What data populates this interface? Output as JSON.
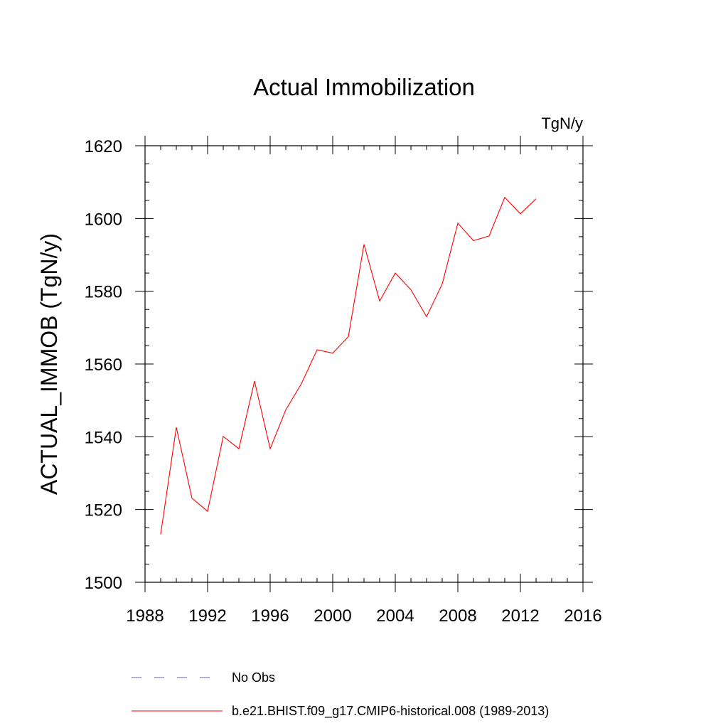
{
  "chart_data": {
    "type": "line",
    "title": "Actual Immobilization",
    "units_label": "TgN/y",
    "xlabel": "",
    "ylabel": "ACTUAL_IMMOB  (TgN/y)",
    "xlim": [
      1988,
      2016
    ],
    "ylim": [
      1500,
      1620
    ],
    "x_ticks": [
      1988,
      1992,
      1996,
      2000,
      2004,
      2008,
      2012,
      2016
    ],
    "y_ticks": [
      1500,
      1520,
      1540,
      1560,
      1580,
      1600,
      1620
    ],
    "x_tick_labels": [
      "1988",
      "1992",
      "1996",
      "2000",
      "2004",
      "2008",
      "2012",
      "2016"
    ],
    "y_tick_labels": [
      "1500",
      "1520",
      "1540",
      "1560",
      "1580",
      "1600",
      "1620"
    ],
    "series": [
      {
        "name": "b.e21.BHIST.f09_g17.CMIP6-historical.008 (1989-2013)",
        "color": "#ff0000",
        "x": [
          1989,
          1990,
          1991,
          1992,
          1993,
          1994,
          1995,
          1996,
          1997,
          1998,
          1999,
          2000,
          2001,
          2002,
          2003,
          2004,
          2005,
          2006,
          2007,
          2008,
          2009,
          2010,
          2011,
          2012,
          2013
        ],
        "y": [
          1513.2,
          1542.6,
          1523.1,
          1519.5,
          1540.1,
          1536.7,
          1555.3,
          1536.7,
          1547.4,
          1554.6,
          1563.9,
          1563.0,
          1567.5,
          1592.9,
          1577.3,
          1585.0,
          1580.4,
          1573.0,
          1582.0,
          1598.7,
          1593.9,
          1595.2,
          1605.8,
          1601.3,
          1605.4
        ]
      }
    ],
    "legend": [
      {
        "label": "No Obs",
        "style": "dashed",
        "color": "#6a5acd"
      },
      {
        "label": "b.e21.BHIST.f09_g17.CMIP6-historical.008 (1989-2013)",
        "style": "solid",
        "color": "#ff0000"
      }
    ],
    "grid": false,
    "legend_position": "bottom"
  }
}
